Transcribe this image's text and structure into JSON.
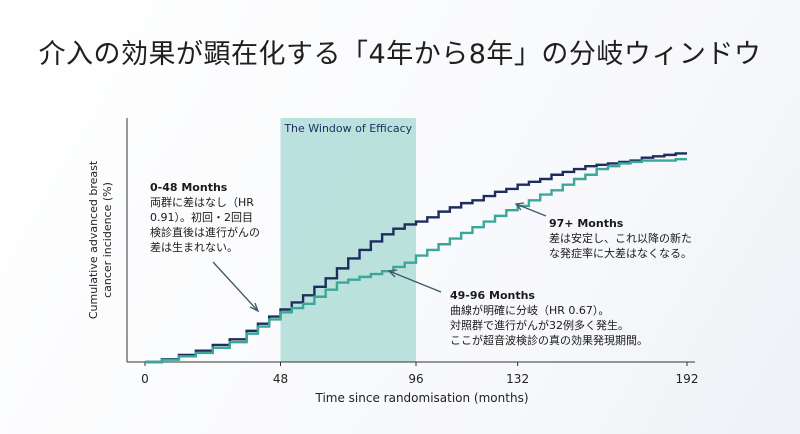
{
  "title": "介入の効果が顕在化する「4年から8年」の分岐ウィンドウ",
  "colors": {
    "control": "#1d2d5e",
    "screening": "#3aa79a",
    "window": "#a4d8d1"
  },
  "window_label": "The Window of Efficacy",
  "annotations": {
    "early": {
      "head": "0-48 Months",
      "lines": [
        "両群に差はなし（HR",
        "0.91）。初回・2回目",
        "検診直後は進行がんの",
        "差は生まれない。"
      ]
    },
    "mid": {
      "head": "49-96 Months",
      "lines": [
        "曲線が明確に分岐（HR 0.67）。",
        "対照群で進行がんが32例多く発生。",
        "ここが超音波検診の真の効果発現期間。"
      ]
    },
    "late": {
      "head": "97+ Months",
      "lines": [
        "差は安定し、これ以降の新た",
        "な発症率に大差はなくなる。"
      ]
    }
  },
  "chart_data": {
    "type": "line",
    "xlabel": "Time since randomisation (months)",
    "ylabel": "Cumulative advanced breast cancer incidence (%)",
    "xlim": [
      0,
      192
    ],
    "x_ticks": [
      "0",
      "48",
      "96",
      "132",
      "192"
    ],
    "highlight_range": [
      48,
      96
    ],
    "series": [
      {
        "id": "control",
        "step": true,
        "x": [
          0,
          6,
          12,
          18,
          24,
          30,
          36,
          40,
          44,
          48,
          52,
          56,
          60,
          64,
          68,
          72,
          76,
          80,
          84,
          88,
          92,
          96,
          100,
          104,
          108,
          112,
          116,
          120,
          124,
          128,
          132,
          136,
          140,
          144,
          148,
          152,
          156,
          160,
          164,
          168,
          172,
          176,
          180,
          184,
          188
        ],
        "y": [
          0,
          0.1,
          0.25,
          0.4,
          0.6,
          0.8,
          1.1,
          1.35,
          1.6,
          1.85,
          2.1,
          2.35,
          2.65,
          2.95,
          3.3,
          3.65,
          3.95,
          4.25,
          4.5,
          4.7,
          4.85,
          4.95,
          5.1,
          5.3,
          5.45,
          5.6,
          5.7,
          5.85,
          6.0,
          6.1,
          6.25,
          6.35,
          6.45,
          6.6,
          6.7,
          6.8,
          6.9,
          6.95,
          7.0,
          7.05,
          7.1,
          7.2,
          7.25,
          7.3,
          7.35
        ]
      },
      {
        "id": "screening",
        "step": true,
        "x": [
          0,
          6,
          12,
          18,
          24,
          30,
          36,
          40,
          44,
          48,
          52,
          56,
          60,
          64,
          68,
          72,
          76,
          80,
          84,
          88,
          92,
          96,
          100,
          104,
          108,
          112,
          116,
          120,
          124,
          128,
          132,
          136,
          140,
          144,
          148,
          152,
          156,
          160,
          164,
          168,
          172,
          176,
          180,
          184,
          188
        ],
        "y": [
          0,
          0.08,
          0.2,
          0.32,
          0.5,
          0.7,
          1.0,
          1.25,
          1.5,
          1.75,
          1.9,
          2.05,
          2.3,
          2.55,
          2.8,
          2.9,
          3.0,
          3.1,
          3.2,
          3.35,
          3.5,
          3.75,
          3.95,
          4.15,
          4.35,
          4.55,
          4.75,
          4.95,
          5.15,
          5.35,
          5.5,
          5.7,
          5.9,
          6.05,
          6.25,
          6.45,
          6.6,
          6.8,
          6.9,
          7.0,
          7.05,
          7.1,
          7.1,
          7.1,
          7.15
        ]
      }
    ]
  }
}
